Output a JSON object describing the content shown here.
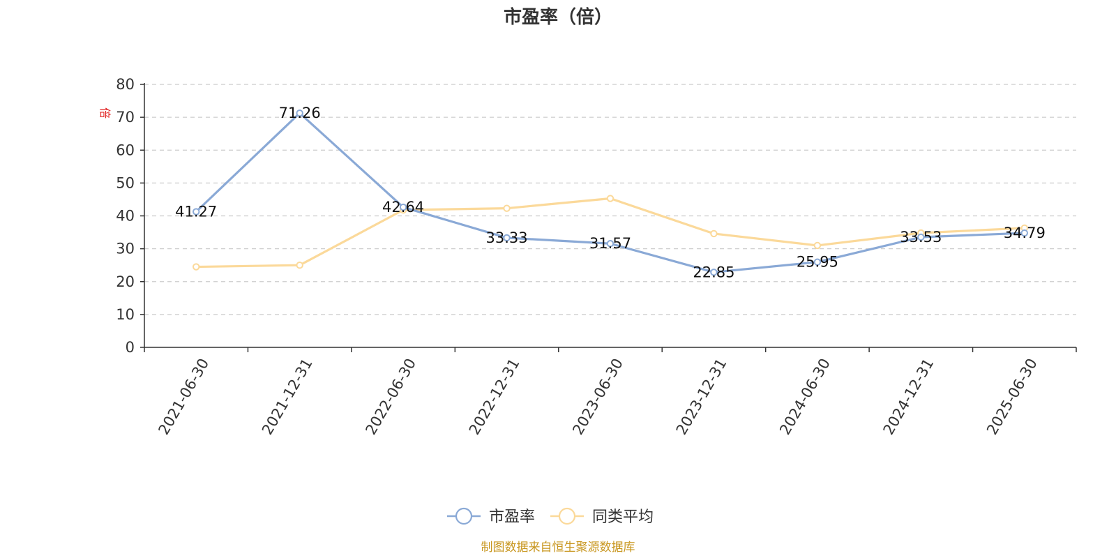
{
  "chart_data": {
    "type": "line",
    "title": "市盈率（倍）",
    "ylabel": "倍",
    "xlabel": "",
    "ylim": [
      0,
      80
    ],
    "yticks": [
      0,
      10,
      20,
      30,
      40,
      50,
      60,
      70,
      80
    ],
    "grid": true,
    "legend_position": "bottom-center",
    "categories": [
      "2021-06-30",
      "2021-12-31",
      "2022-06-30",
      "2022-12-31",
      "2023-06-30",
      "2023-12-31",
      "2024-06-30",
      "2024-12-31",
      "2025-06-30"
    ],
    "series": [
      {
        "name": "市盈率",
        "color": "#8aa9d6",
        "values": [
          41.27,
          71.26,
          42.64,
          33.33,
          31.57,
          22.85,
          25.95,
          33.53,
          34.79
        ],
        "labels": [
          "41.27",
          "71.26",
          "42.64",
          "33.33",
          "31.57",
          "22.85",
          "25.95",
          "33.53",
          "34.79"
        ]
      },
      {
        "name": "同类平均",
        "color": "#fbd99a",
        "values": [
          24.5,
          25.0,
          41.8,
          42.3,
          45.3,
          34.6,
          31.0,
          34.8,
          36.3
        ]
      }
    ]
  },
  "source_note": "制图数据来自恒生聚源数据库"
}
